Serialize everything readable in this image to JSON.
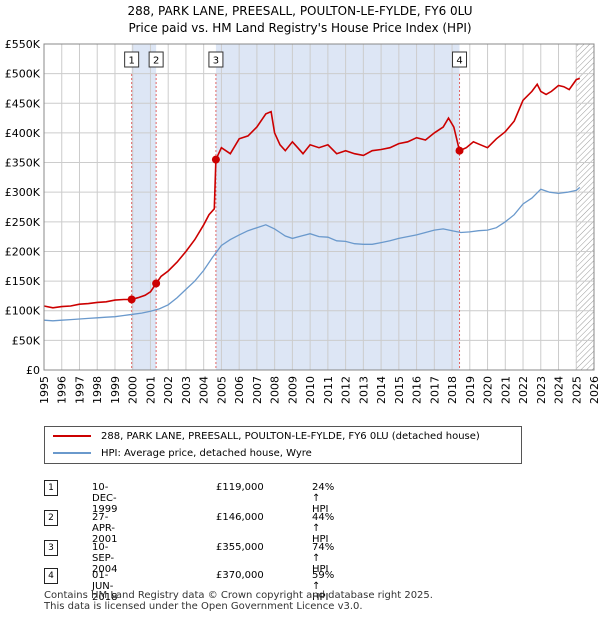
{
  "title_line1": "288, PARK LANE, PREESALL, POULTON-LE-FYLDE, FY6 0LU",
  "title_line2": "Price paid vs. HM Land Registry's House Price Index (HPI)",
  "colors": {
    "property": "#cc0000",
    "hpi": "#6a99cc",
    "shade": "#dde6f5",
    "grid": "#cccccc",
    "vline": "#e06666"
  },
  "chart_data": {
    "type": "line",
    "xlabel": "",
    "ylabel": "",
    "xlim": [
      1995,
      2026
    ],
    "ylim": [
      0,
      550000
    ],
    "x_ticks": [
      1995,
      1996,
      1997,
      1998,
      1999,
      2000,
      2001,
      2002,
      2003,
      2004,
      2005,
      2006,
      2007,
      2008,
      2009,
      2010,
      2011,
      2012,
      2013,
      2014,
      2015,
      2016,
      2017,
      2018,
      2019,
      2020,
      2021,
      2022,
      2023,
      2024,
      2025,
      2026
    ],
    "y_ticks": [
      0,
      50000,
      100000,
      150000,
      200000,
      250000,
      300000,
      350000,
      400000,
      450000,
      500000,
      550000
    ],
    "y_tick_labels": [
      "£0",
      "£50K",
      "£100K",
      "£150K",
      "£200K",
      "£250K",
      "£300K",
      "£350K",
      "£400K",
      "£450K",
      "£500K",
      "£550K"
    ],
    "shaded_periods": [
      [
        1999.94,
        2001.32
      ],
      [
        2004.69,
        2018.42
      ]
    ],
    "hatched_from": 2025.0,
    "series": [
      {
        "name": "288, PARK LANE, PREESALL, POULTON-LE-FYLDE, FY6 0LU (detached house)",
        "x": [
          1995,
          1995.5,
          1996,
          1996.5,
          1997,
          1997.5,
          1998,
          1998.5,
          1999,
          1999.5,
          1999.94,
          2000.3,
          2000.7,
          2001.0,
          2001.32,
          2001.6,
          2002,
          2002.5,
          2003,
          2003.5,
          2004,
          2004.3,
          2004.6,
          2004.69,
          2005,
          2005.5,
          2006,
          2006.5,
          2007,
          2007.5,
          2007.8,
          2008,
          2008.3,
          2008.6,
          2009,
          2009.3,
          2009.6,
          2010,
          2010.5,
          2011,
          2011.5,
          2012,
          2012.5,
          2013,
          2013.5,
          2014,
          2014.5,
          2015,
          2015.5,
          2016,
          2016.5,
          2017,
          2017.5,
          2017.8,
          2018.1,
          2018.42,
          2018.8,
          2019.2,
          2019.6,
          2020,
          2020.5,
          2021,
          2021.5,
          2022,
          2022.5,
          2022.8,
          2023,
          2023.3,
          2023.6,
          2024,
          2024.3,
          2024.6,
          2025,
          2025.2
        ],
        "values": [
          108000,
          105000,
          107000,
          108000,
          111000,
          112000,
          114000,
          115000,
          118000,
          119000,
          119000,
          122000,
          126000,
          132000,
          146000,
          158000,
          167000,
          182000,
          200000,
          220000,
          245000,
          262000,
          272000,
          355000,
          375000,
          365000,
          390000,
          395000,
          410000,
          432000,
          436000,
          400000,
          380000,
          370000,
          385000,
          375000,
          365000,
          380000,
          375000,
          380000,
          365000,
          370000,
          365000,
          362000,
          370000,
          372000,
          375000,
          382000,
          385000,
          392000,
          388000,
          400000,
          410000,
          425000,
          410000,
          370000,
          375000,
          385000,
          380000,
          375000,
          390000,
          402000,
          420000,
          455000,
          470000,
          482000,
          470000,
          465000,
          470000,
          480000,
          478000,
          473000,
          490000,
          492000
        ]
      },
      {
        "name": "HPI: Average price, detached house, Wyre",
        "x": [
          1995,
          1995.5,
          1996,
          1996.5,
          1997,
          1997.5,
          1998,
          1998.5,
          1999,
          1999.5,
          2000,
          2000.5,
          2001,
          2001.5,
          2002,
          2002.5,
          2003,
          2003.5,
          2004,
          2004.5,
          2005,
          2005.5,
          2006,
          2006.5,
          2007,
          2007.5,
          2008,
          2008.3,
          2008.6,
          2009,
          2009.5,
          2010,
          2010.5,
          2011,
          2011.5,
          2012,
          2012.5,
          2013,
          2013.5,
          2014,
          2014.5,
          2015,
          2015.5,
          2016,
          2016.5,
          2017,
          2017.5,
          2018,
          2018.5,
          2019,
          2019.5,
          2020,
          2020.5,
          2021,
          2021.5,
          2022,
          2022.5,
          2023,
          2023.5,
          2024,
          2024.5,
          2025,
          2025.2
        ],
        "values": [
          84000,
          83000,
          84000,
          85000,
          86000,
          87000,
          88000,
          89000,
          90000,
          92000,
          94000,
          96000,
          99000,
          103000,
          110000,
          122000,
          136000,
          150000,
          168000,
          190000,
          210000,
          220000,
          228000,
          235000,
          240000,
          245000,
          238000,
          232000,
          226000,
          222000,
          226000,
          230000,
          225000,
          224000,
          218000,
          217000,
          213000,
          212000,
          212000,
          215000,
          218000,
          222000,
          225000,
          228000,
          232000,
          236000,
          238000,
          235000,
          232000,
          233000,
          235000,
          236000,
          240000,
          250000,
          262000,
          280000,
          290000,
          305000,
          300000,
          298000,
          300000,
          303000,
          308000
        ]
      }
    ],
    "sales": [
      {
        "num": "1",
        "x": 1999.94,
        "value": 119000,
        "date": "10-DEC-1999",
        "price": "£119,000",
        "hpi": "24% ↑ HPI"
      },
      {
        "num": "2",
        "x": 2001.32,
        "value": 146000,
        "date": "27-APR-2001",
        "price": "£146,000",
        "hpi": "44% ↑ HPI"
      },
      {
        "num": "3",
        "x": 2004.69,
        "value": 355000,
        "date": "10-SEP-2004",
        "price": "£355,000",
        "hpi": "74% ↑ HPI"
      },
      {
        "num": "4",
        "x": 2018.42,
        "value": 370000,
        "date": "01-JUN-2018",
        "price": "£370,000",
        "hpi": "59% ↑ HPI"
      }
    ]
  },
  "legend": [
    {
      "label": "288, PARK LANE, PREESALL, POULTON-LE-FYLDE, FY6 0LU (detached house)"
    },
    {
      "label": "HPI: Average price, detached house, Wyre"
    }
  ],
  "footer_line1": "Contains HM Land Registry data © Crown copyright and database right 2025.",
  "footer_line2": "This data is licensed under the Open Government Licence v3.0."
}
